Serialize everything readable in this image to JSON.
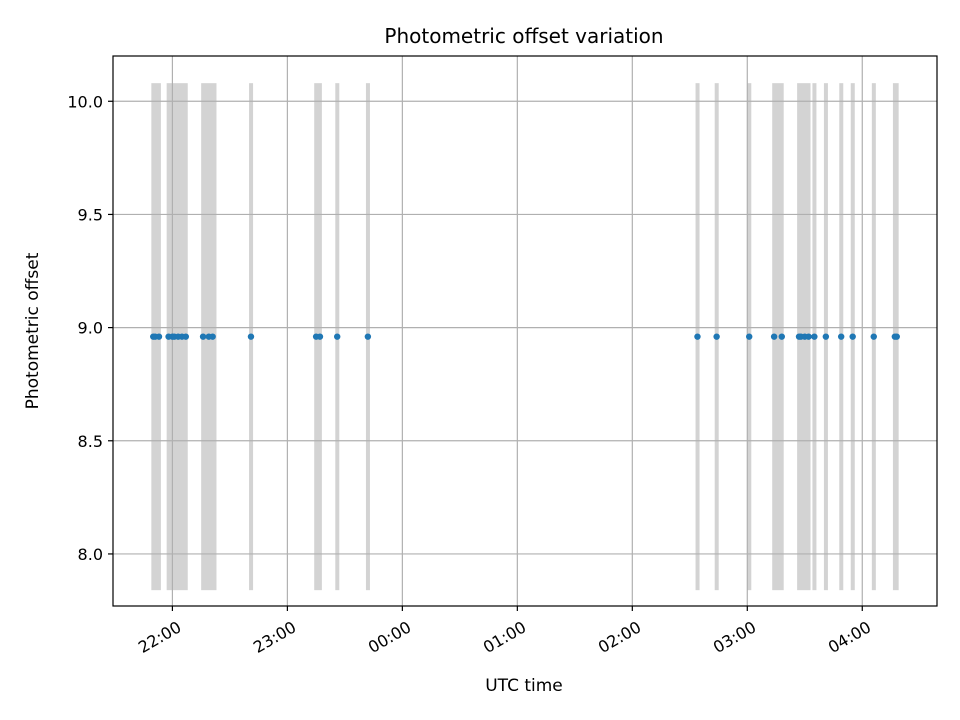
{
  "chart_data": {
    "type": "scatter",
    "title": "Photometric offset variation",
    "xlabel": "UTC time",
    "ylabel": "Photometric offset",
    "x_axis": {
      "kind": "time",
      "range": [
        "21:29",
        "04:39"
      ],
      "ticks": [
        "22:00",
        "23:00",
        "00:00",
        "01:00",
        "02:00",
        "03:00",
        "04:00"
      ],
      "tick_rotation_deg": 30
    },
    "y_axis": {
      "range": [
        7.77,
        10.2
      ],
      "ticks": [
        8.0,
        8.5,
        9.0,
        9.5,
        10.0
      ],
      "tick_labels": [
        "8.0",
        "8.5",
        "9.0",
        "9.5",
        "10.0"
      ]
    },
    "grid": true,
    "series": [
      {
        "style": "points",
        "color": "#1f77b4",
        "points": [
          {
            "t": "21:50",
            "y": 8.96
          },
          {
            "t": "21:51",
            "y": 8.96
          },
          {
            "t": "21:53",
            "y": 8.96
          },
          {
            "t": "21:58",
            "y": 8.96
          },
          {
            "t": "22:00",
            "y": 8.96
          },
          {
            "t": "22:01",
            "y": 8.96
          },
          {
            "t": "22:03",
            "y": 8.96
          },
          {
            "t": "22:05",
            "y": 8.96
          },
          {
            "t": "22:07",
            "y": 8.96
          },
          {
            "t": "22:16",
            "y": 8.96
          },
          {
            "t": "22:19",
            "y": 8.96
          },
          {
            "t": "22:21",
            "y": 8.96
          },
          {
            "t": "22:41",
            "y": 8.96
          },
          {
            "t": "23:15",
            "y": 8.96
          },
          {
            "t": "23:17",
            "y": 8.96
          },
          {
            "t": "23:26",
            "y": 8.96
          },
          {
            "t": "23:42",
            "y": 8.96
          },
          {
            "t": "02:34",
            "y": 8.96
          },
          {
            "t": "02:44",
            "y": 8.96
          },
          {
            "t": "03:01",
            "y": 8.96
          },
          {
            "t": "03:14",
            "y": 8.96
          },
          {
            "t": "03:18",
            "y": 8.96
          },
          {
            "t": "03:27",
            "y": 8.96
          },
          {
            "t": "03:28",
            "y": 8.96
          },
          {
            "t": "03:30",
            "y": 8.96
          },
          {
            "t": "03:32",
            "y": 8.96
          },
          {
            "t": "03:35",
            "y": 8.96
          },
          {
            "t": "03:41",
            "y": 8.96
          },
          {
            "t": "03:49",
            "y": 8.96
          },
          {
            "t": "03:55",
            "y": 8.96
          },
          {
            "t": "04:06",
            "y": 8.96
          },
          {
            "t": "04:17",
            "y": 8.96
          },
          {
            "t": "04:18",
            "y": 8.96
          }
        ]
      }
    ],
    "shaded_spans": {
      "color": "#d3d3d3",
      "y_range": [
        7.84,
        10.08
      ],
      "spans": [
        [
          "21:49",
          "21:54"
        ],
        [
          "21:57",
          "22:08"
        ],
        [
          "22:15",
          "22:23"
        ],
        [
          "22:40",
          "22:42"
        ],
        [
          "23:14",
          "23:18"
        ],
        [
          "23:25",
          "23:27"
        ],
        [
          "23:41",
          "23:43"
        ],
        [
          "02:33",
          "02:35"
        ],
        [
          "02:43",
          "02:45"
        ],
        [
          "03:00",
          "03:02"
        ],
        [
          "03:13",
          "03:19"
        ],
        [
          "03:26",
          "03:33"
        ],
        [
          "03:34",
          "03:36"
        ],
        [
          "03:40",
          "03:42"
        ],
        [
          "03:48",
          "03:50"
        ],
        [
          "03:54",
          "03:56"
        ],
        [
          "04:05",
          "04:07"
        ],
        [
          "04:16",
          "04:19"
        ]
      ]
    }
  }
}
